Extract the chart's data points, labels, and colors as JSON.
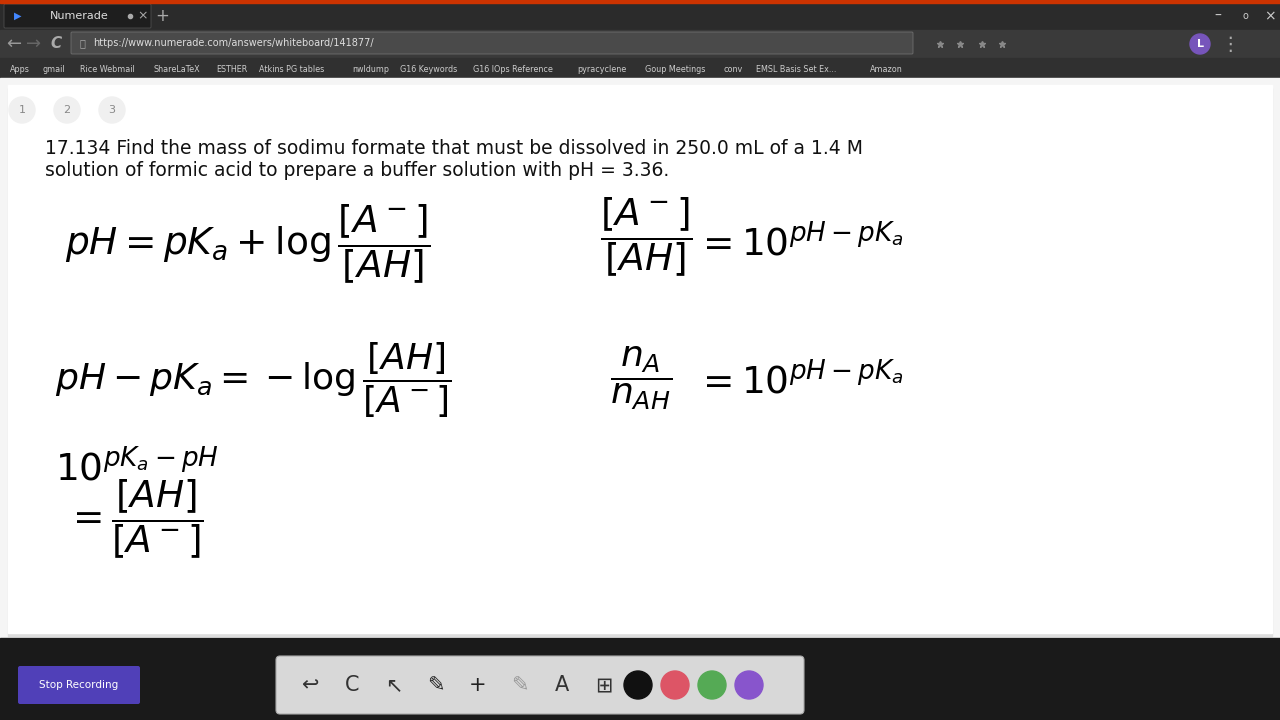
{
  "fig_width": 12.8,
  "fig_height": 7.2,
  "dpi": 100,
  "title_bar_color": "#2b2b2b",
  "nav_bar_color": "#3a3a3a",
  "bookmarks_bar_color": "#303030",
  "content_bg": "#f5f5f5",
  "whiteboard_bg": "#ffffff",
  "bottom_strip_color": "#1a1a1a",
  "bottom_panel_bg": "#d6d6d6",
  "tab_text": "Numerade",
  "url": "https://www.numerade.com/answers/whiteboard/141877/",
  "problem_line1": "17.134 Find the mass of sodimu formate that must be dissolved in 250.0 mL of a 1.4 M",
  "problem_line2": "solution of formic acid to prepare a buffer solution with pH = 3.36.",
  "stop_btn_color": "#5040b8",
  "stop_btn_text": "Stop Recording",
  "bookmarks": [
    "Apps",
    "gmail",
    "Rice Webmail",
    "ShareLaTeX",
    "ESTHER",
    "Atkins PG tables",
    "nwldump",
    "G16 Keywords",
    "G16 IOps Reference",
    "pyracyclene",
    "Goup Meetings",
    "conv",
    "EMSL Basis Set Ex...",
    "Amazon"
  ],
  "profile_circle_color": "#7755bb",
  "red_top_bar": "#cc3300",
  "toolbar_panel_bg": "#d8d8d8"
}
